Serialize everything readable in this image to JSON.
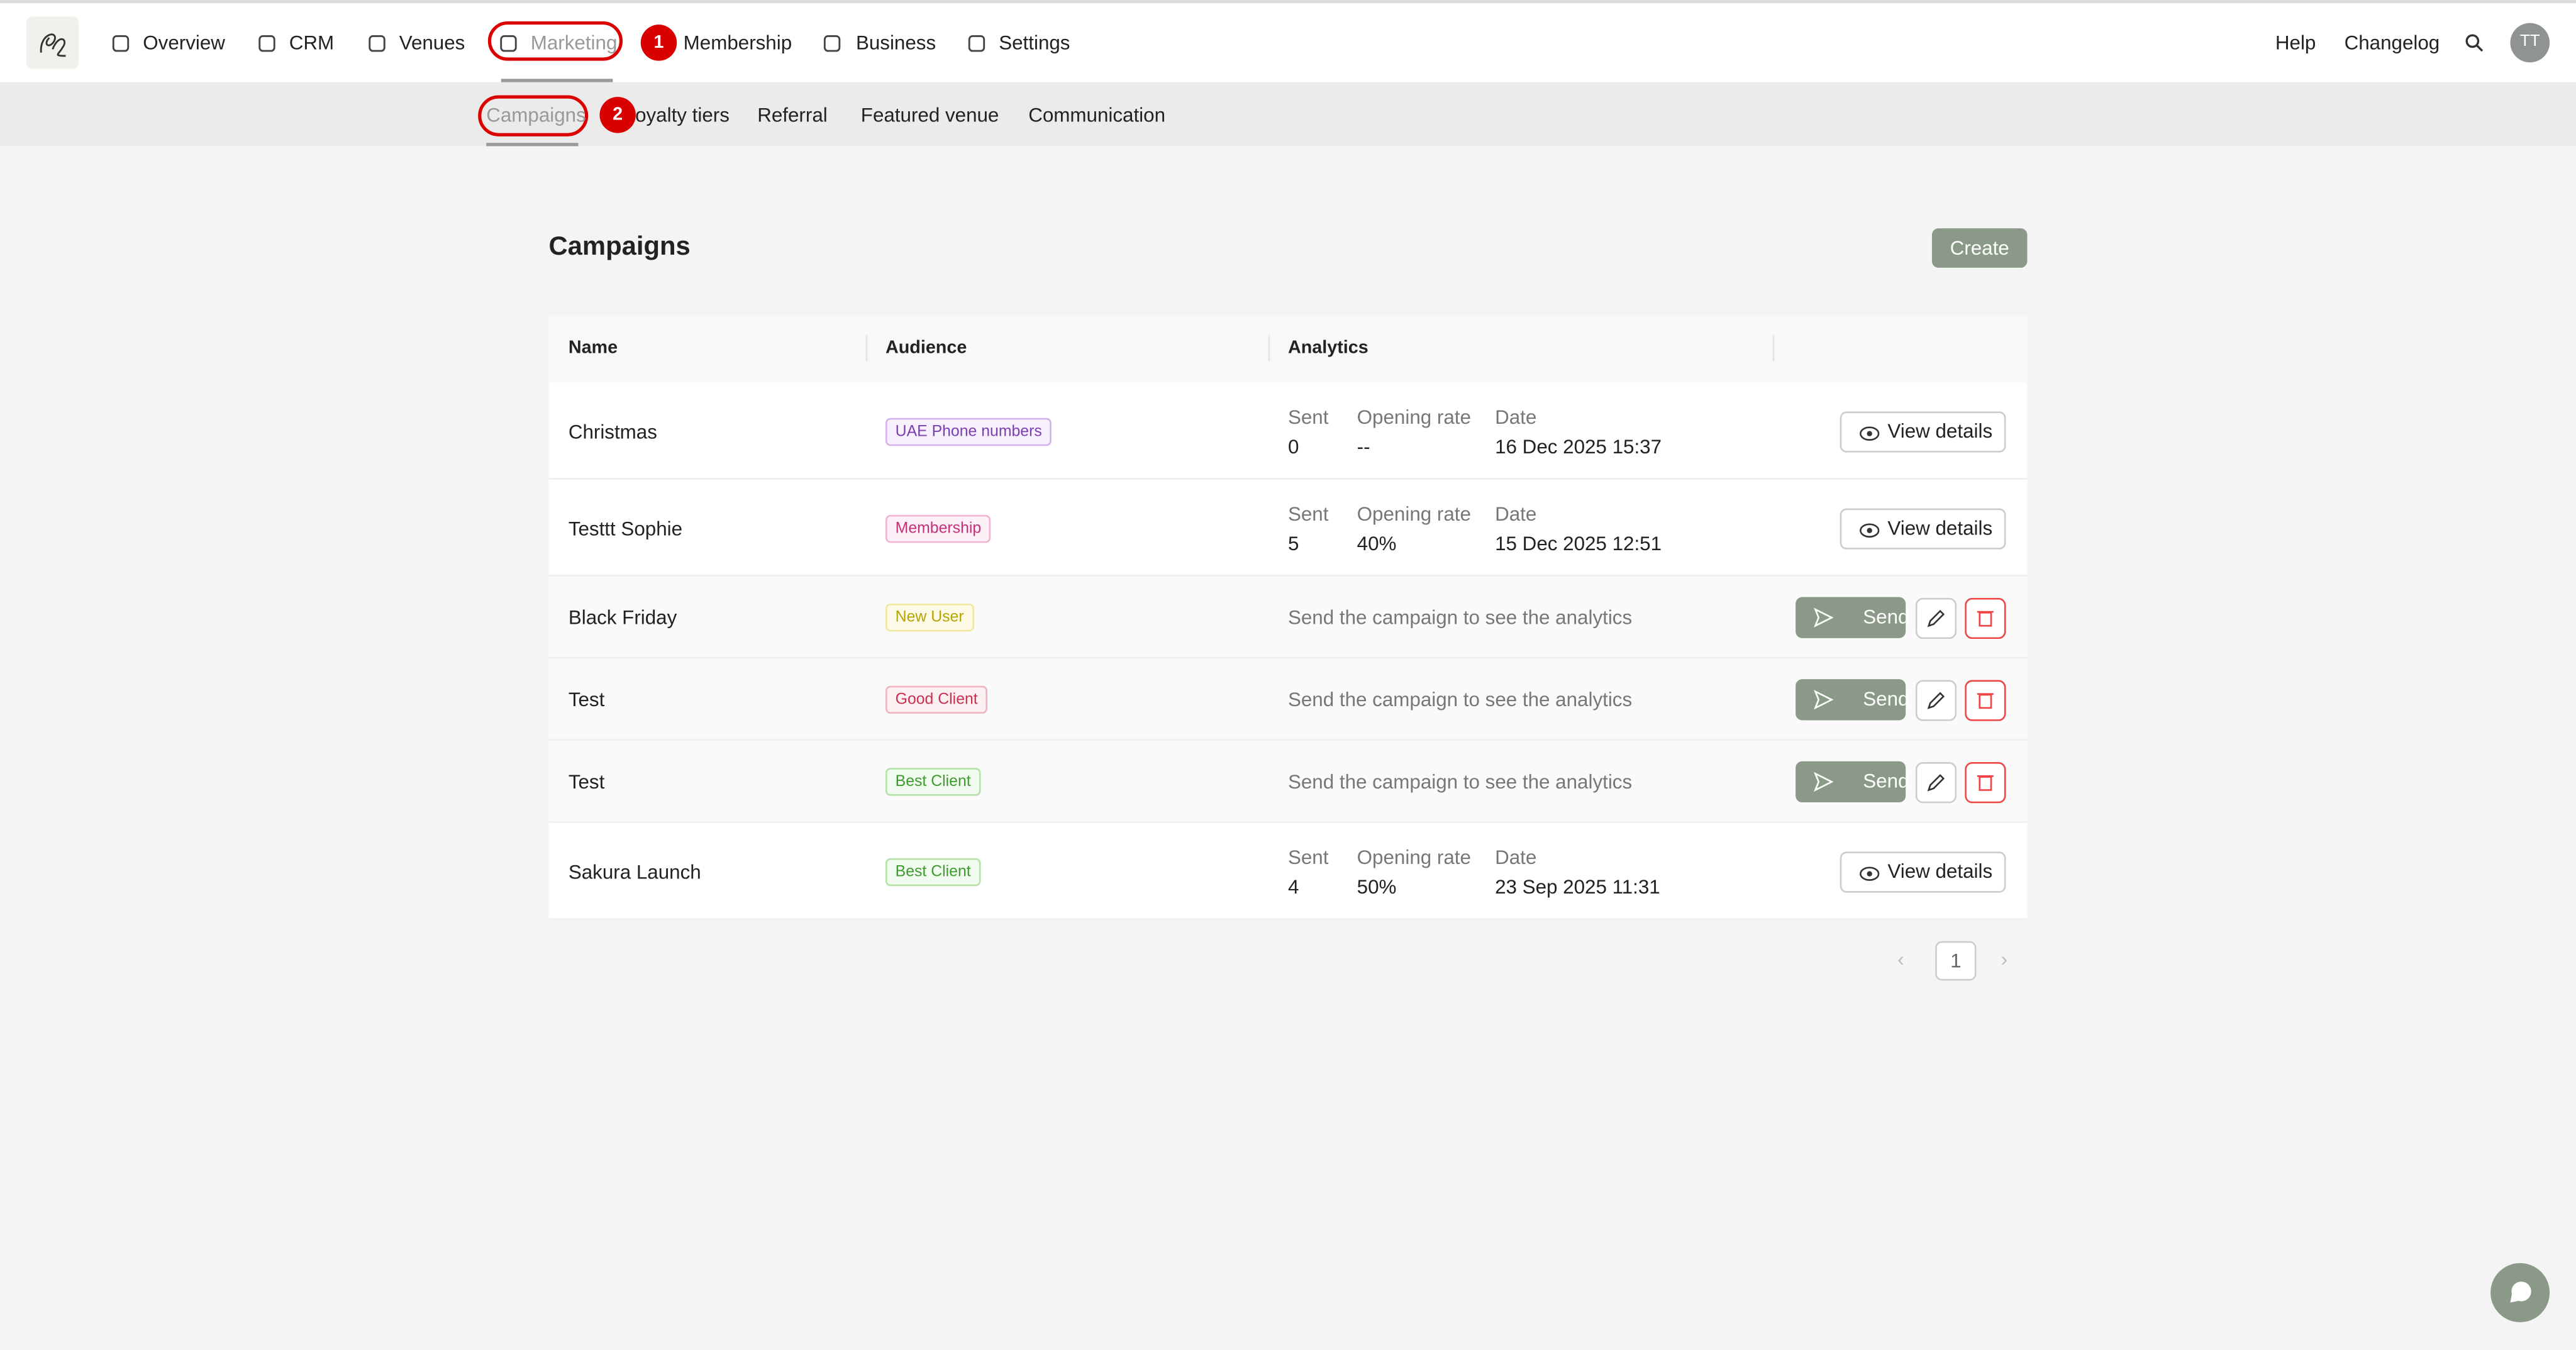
{
  "nav": {
    "items": [
      "Overview",
      "CRM",
      "Venues",
      "Marketing",
      "Membership",
      "Business",
      "Settings"
    ],
    "right": [
      "Help",
      "Changelog"
    ],
    "avatar": "TT"
  },
  "subnav": {
    "items": [
      "Campaigns",
      "Loyalty tiers",
      "Referral",
      "Featured venue",
      "Communication"
    ]
  },
  "annotations": [
    "1",
    "2"
  ],
  "page": {
    "title": "Campaigns",
    "create": "Create"
  },
  "table": {
    "headers": [
      "Name",
      "Audience",
      "Analytics"
    ],
    "analytics_labels": [
      "Sent",
      "Opening rate",
      "Date"
    ],
    "view_details": "View details",
    "send": "Send",
    "empty_analytics": "Send the campaign to see the analytics",
    "rows": [
      {
        "name": "Christmas",
        "audience": "UAE Phone numbers",
        "tone": "purple",
        "sent": "0",
        "rate": "--",
        "date": "16 Dec 2025 15:37"
      },
      {
        "name": "Testtt Sophie",
        "audience": "Membership",
        "tone": "pink",
        "sent": "5",
        "rate": "40%",
        "date": "15 Dec 2025 12:51"
      },
      {
        "name": "Black Friday",
        "audience": "New User",
        "tone": "yellow"
      },
      {
        "name": "Test",
        "audience": "Good Client",
        "tone": "red"
      },
      {
        "name": "Test",
        "audience": "Best Client",
        "tone": "green"
      },
      {
        "name": "Sakura Launch",
        "audience": "Best Client",
        "tone": "green",
        "sent": "4",
        "rate": "50%",
        "date": "23 Sep 2025 11:31"
      }
    ]
  },
  "pagination": {
    "page": "1"
  }
}
